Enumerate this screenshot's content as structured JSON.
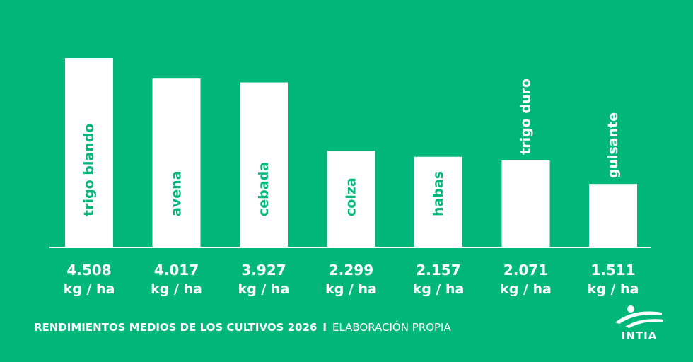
{
  "colors": {
    "background": "#00b77a",
    "bar": "#ffffff",
    "bar_label": "#00b77a",
    "text": "#ffffff"
  },
  "chart_data": {
    "type": "bar",
    "categories": [
      "trigo blando",
      "avena",
      "cebada",
      "colza",
      "habas",
      "trigo duro",
      "guisante"
    ],
    "values": [
      4508,
      4017,
      3927,
      2299,
      2157,
      2071,
      1511
    ],
    "value_labels": [
      "4.508",
      "4.017",
      "3.927",
      "2.299",
      "2.157",
      "2.071",
      "1.511"
    ],
    "unit_label": "kg / ha",
    "ylim": [
      0,
      4508
    ],
    "grid": false,
    "legend": "none"
  },
  "footer": {
    "caption": "RENDIMIENTOS MEDIOS DE LOS CULTIVOS 2026",
    "separator": "I",
    "source": "ELABORACIÓN PROPIA"
  },
  "logo": {
    "text": "INTIA",
    "icon": "intia-logo-icon"
  }
}
